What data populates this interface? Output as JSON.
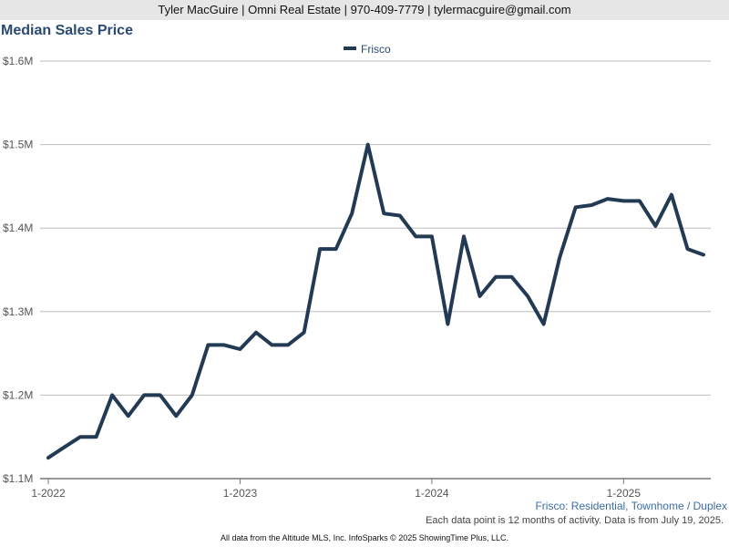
{
  "header": {
    "contact": "Tyler MacGuire | Omni Real Estate | 970-409-7779 | tylermacguire@gmail.com"
  },
  "chart_data": {
    "type": "line",
    "title": "Median Sales Price",
    "subtitle": "Frisco: Residential, Townhome / Duplex",
    "xlabel": "",
    "ylabel": "",
    "x": [
      "2022-01",
      "2022-02",
      "2022-03",
      "2022-04",
      "2022-05",
      "2022-06",
      "2022-07",
      "2022-08",
      "2022-09",
      "2022-10",
      "2022-11",
      "2022-12",
      "2023-01",
      "2023-02",
      "2023-03",
      "2023-04",
      "2023-05",
      "2023-06",
      "2023-07",
      "2023-08",
      "2023-09",
      "2023-10",
      "2023-11",
      "2023-12",
      "2024-01",
      "2024-02",
      "2024-03",
      "2024-04",
      "2024-05",
      "2024-06",
      "2024-07",
      "2024-08",
      "2024-09",
      "2024-10",
      "2024-11",
      "2024-12",
      "2025-01",
      "2025-02",
      "2025-03",
      "2025-04",
      "2025-05",
      "2025-06"
    ],
    "x_tick_labels": [
      {
        "x": "2022-01",
        "label": "1-2022"
      },
      {
        "x": "2023-01",
        "label": "1-2023"
      },
      {
        "x": "2024-01",
        "label": "1-2024"
      },
      {
        "x": "2025-01",
        "label": "1-2025"
      }
    ],
    "series": [
      {
        "name": "Frisco",
        "color": "#233a55",
        "values": [
          1125000,
          1137500,
          1150000,
          1150000,
          1200000,
          1175000,
          1200000,
          1200000,
          1175000,
          1200000,
          1260000,
          1260000,
          1255000,
          1275000,
          1260000,
          1260000,
          1275000,
          1375000,
          1375000,
          1417500,
          1500000,
          1417500,
          1415000,
          1390000,
          1390000,
          1285000,
          1390000,
          1318500,
          1341500,
          1341500,
          1318500,
          1285000,
          1365000,
          1425000,
          1427500,
          1435000,
          1432500,
          1432500,
          1402500,
          1440000,
          1375000,
          1368000
        ]
      }
    ],
    "ylim": [
      1100000,
      1600000
    ],
    "y_ticks": [
      {
        "value": 1100000,
        "label": "$1.1M"
      },
      {
        "value": 1200000,
        "label": "$1.2M"
      },
      {
        "value": 1300000,
        "label": "$1.3M"
      },
      {
        "value": 1400000,
        "label": "$1.4M"
      },
      {
        "value": 1500000,
        "label": "$1.5M"
      },
      {
        "value": 1600000,
        "label": "$1.6M"
      }
    ],
    "grid": "horizontal",
    "legend_position": "top-center"
  },
  "notes": {
    "activity": "Each data point is 12 months of activity. Data is from July 19, 2025."
  },
  "footer": {
    "text": "All data from the Altitude MLS, Inc. InfoSparks © 2025 ShowingTime Plus, LLC."
  }
}
